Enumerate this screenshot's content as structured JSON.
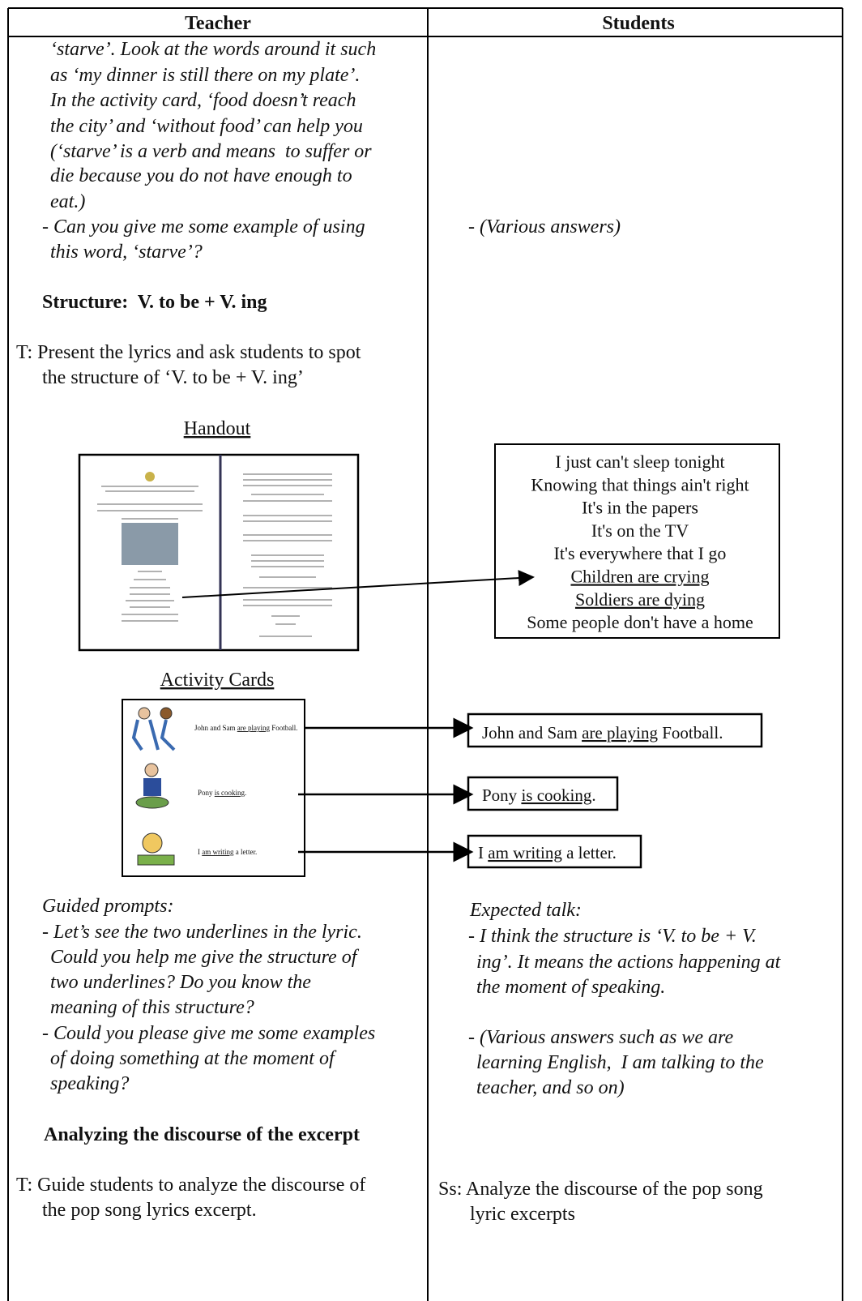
{
  "table": {
    "headers": [
      "Teacher",
      "Students"
    ],
    "teacher": {
      "intro_lines": [
        "‘starve’. Look at the words around it such",
        "as ‘my dinner is still there on my plate’.",
        "In the activity card, ‘food doesn’t reach",
        "the city’ and ‘without food’ can help you",
        "(‘starve’ is a verb and means  to suffer or",
        "die because you do not have enough to",
        "eat.)"
      ],
      "question_lines": [
        "- Can you give me some example of using",
        "this word, ‘starve’?"
      ],
      "structure_heading": "Structure:  V. to be + V. ing",
      "present_lines": [
        "T: Present the lyrics and ask students to spot",
        "the structure of ‘V. to be + V. ing’"
      ],
      "handout_label": "Handout",
      "activity_label": "Activity Cards",
      "cards": [
        [
          {
            "text": "John and Sam ",
            "underline": false
          },
          {
            "text": "are playing",
            "underline": true
          },
          {
            "text": " Football.",
            "underline": false
          }
        ],
        [
          {
            "text": "Pony ",
            "underline": false
          },
          {
            "text": "is cooking",
            "underline": true
          },
          {
            "text": ".",
            "underline": false
          }
        ],
        [
          {
            "text": "I ",
            "underline": false
          },
          {
            "text": "am writing",
            "underline": true
          },
          {
            "text": " a letter.",
            "underline": false
          }
        ]
      ],
      "prompts_heading": "Guided prompts:",
      "prompt_lines": [
        "- Let’s see the two underlines in the lyric.",
        "Could you help me give the structure of",
        "two underlines? Do you know the",
        "meaning of this structure?",
        "- Could you please give me some examples",
        "of doing something at the moment of",
        "speaking?"
      ],
      "analyze_heading": "Analyzing the discourse of the excerpt",
      "analyze_lines": [
        "T: Guide students to analyze the discourse of",
        "the pop song lyrics excerpt."
      ]
    },
    "students": {
      "various_answers": "- (Various answers)",
      "lyrics": [
        {
          "text": "I just can't sleep tonight",
          "underline": false
        },
        {
          "text": "Knowing that things ain't right",
          "underline": false
        },
        {
          "text": "It's in the papers",
          "underline": false
        },
        {
          "text": "It's on the TV",
          "underline": false
        },
        {
          "text": "It's everywhere that I go",
          "underline": false
        },
        {
          "text": "Children are crying",
          "underline": true
        },
        {
          "text": "Soldiers are dying",
          "underline": true
        },
        {
          "text": "Some people don't have a home",
          "underline": false
        }
      ],
      "answers": [
        [
          {
            "text": "John and Sam ",
            "underline": false
          },
          {
            "text": "are playing",
            "underline": true
          },
          {
            "text": " Football.",
            "underline": false
          }
        ],
        [
          {
            "text": "Pony ",
            "underline": false
          },
          {
            "text": "is cooking",
            "underline": true
          },
          {
            "text": ".",
            "underline": false
          }
        ],
        [
          {
            "text": "I ",
            "underline": false
          },
          {
            "text": "am writing",
            "underline": true
          },
          {
            "text": " a letter.",
            "underline": false
          }
        ]
      ],
      "expected_heading": "Expected talk:",
      "expected_lines": [
        "- I think the structure is ‘V. to be + V.",
        "ing’. It means the actions happening at",
        "the moment of speaking.",
        "- (Various answers such as we are",
        "learning English,  I am talking to the",
        "teacher, and so on)"
      ],
      "analyze_lines": [
        "Ss: Analyze the discourse of the pop song",
        "lyric excerpts"
      ]
    }
  }
}
